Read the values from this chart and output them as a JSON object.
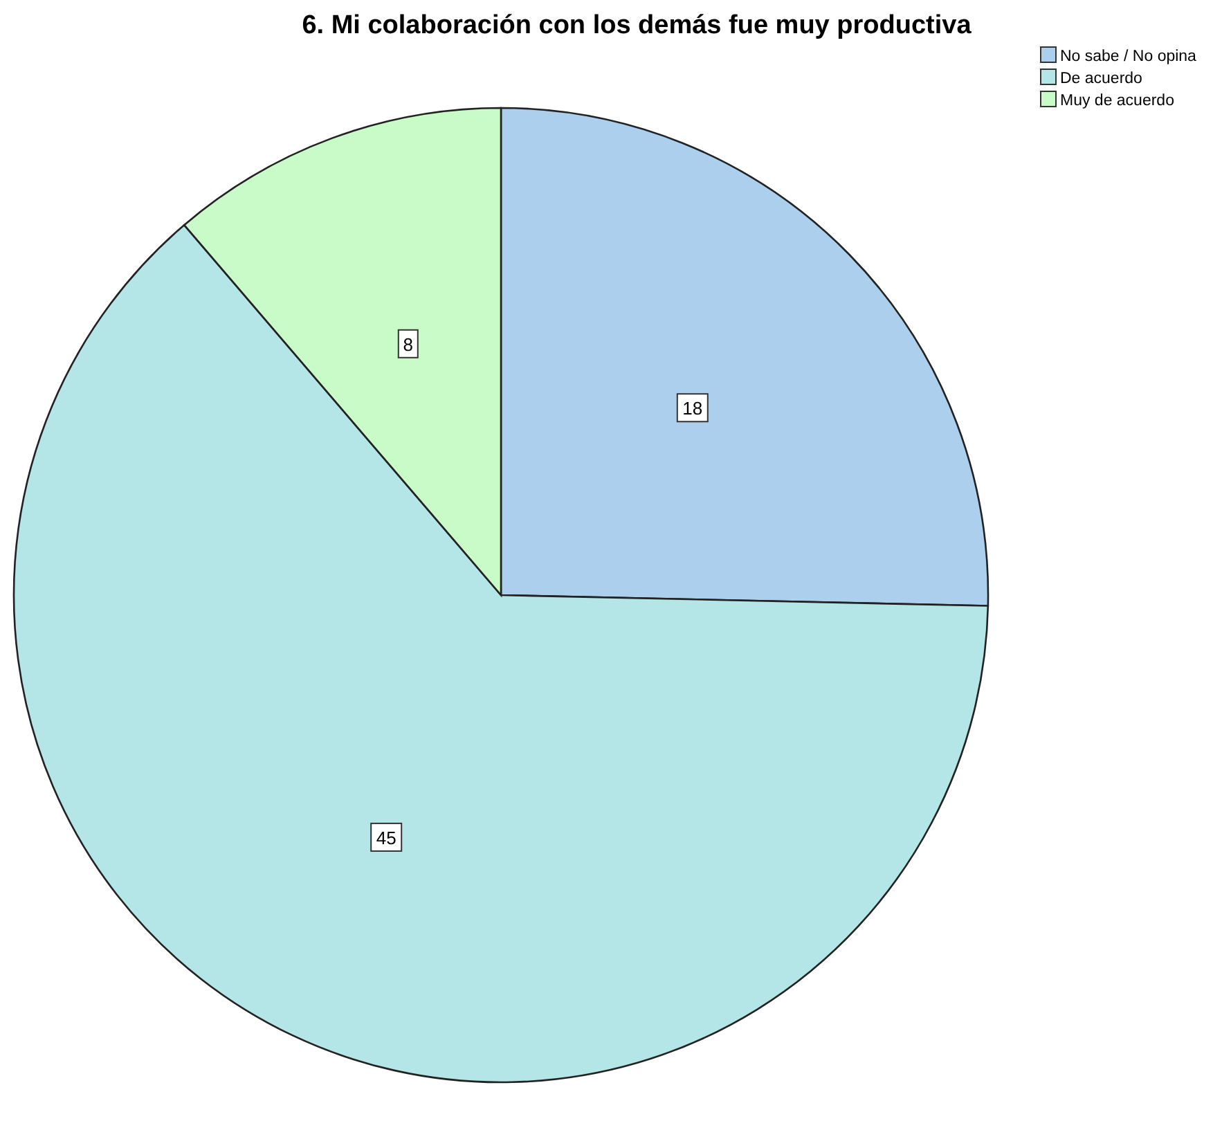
{
  "chart_data": {
    "type": "pie",
    "title": "6. Mi colaboración con los demás fue muy productiva",
    "categories": [
      "No sabe / No opina",
      "De acuerdo",
      "Muy de acuerdo"
    ],
    "values": [
      18,
      45,
      8
    ],
    "colors": [
      "#abcfed",
      "#b4e5e7",
      "#c8fbc8"
    ],
    "data_labels": true,
    "legend": "top right"
  }
}
